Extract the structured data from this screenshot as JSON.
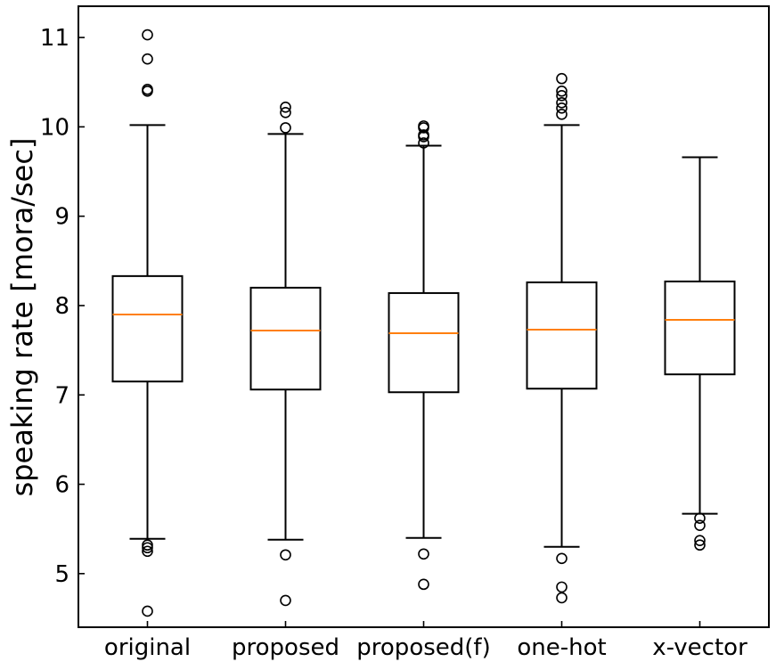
{
  "chart_data": {
    "type": "box",
    "title": "",
    "xlabel": "",
    "ylabel": "speaking rate [mora/sec]",
    "ylim": [
      4.4,
      11.35
    ],
    "yticks": [
      5,
      6,
      7,
      8,
      9,
      10,
      11
    ],
    "categories": [
      "original",
      "proposed",
      "proposed(f)",
      "one-hot",
      "x-vector"
    ],
    "grid": false,
    "colors": {
      "median": "#ff7f0e",
      "box": "#000000",
      "whisker": "#000000",
      "flier": "#000000",
      "background": "#ffffff"
    },
    "boxes": [
      {
        "category": "original",
        "whisker_low": 5.39,
        "q1": 7.15,
        "median": 7.9,
        "q3": 8.33,
        "whisker_high": 10.02,
        "outliers": [
          11.03,
          10.76,
          10.42,
          10.4,
          5.32,
          5.29,
          5.25,
          4.58
        ]
      },
      {
        "category": "proposed",
        "whisker_low": 5.38,
        "q1": 7.06,
        "median": 7.72,
        "q3": 8.2,
        "whisker_high": 9.92,
        "outliers": [
          10.22,
          10.16,
          9.99,
          5.21,
          4.7
        ]
      },
      {
        "category": "proposed(f)",
        "whisker_low": 5.4,
        "q1": 7.03,
        "median": 7.69,
        "q3": 8.14,
        "whisker_high": 9.79,
        "outliers": [
          10.01,
          9.99,
          9.91,
          9.89,
          9.82,
          5.22,
          4.88
        ]
      },
      {
        "category": "one-hot",
        "whisker_low": 5.3,
        "q1": 7.07,
        "median": 7.73,
        "q3": 8.26,
        "whisker_high": 10.02,
        "outliers": [
          10.54,
          10.4,
          10.35,
          10.27,
          10.21,
          10.14,
          5.17,
          4.85,
          4.73
        ]
      },
      {
        "category": "x-vector",
        "whisker_low": 5.67,
        "q1": 7.23,
        "median": 7.84,
        "q3": 8.27,
        "whisker_high": 9.66,
        "outliers": [
          5.62,
          5.54,
          5.37,
          5.32
        ]
      }
    ]
  }
}
